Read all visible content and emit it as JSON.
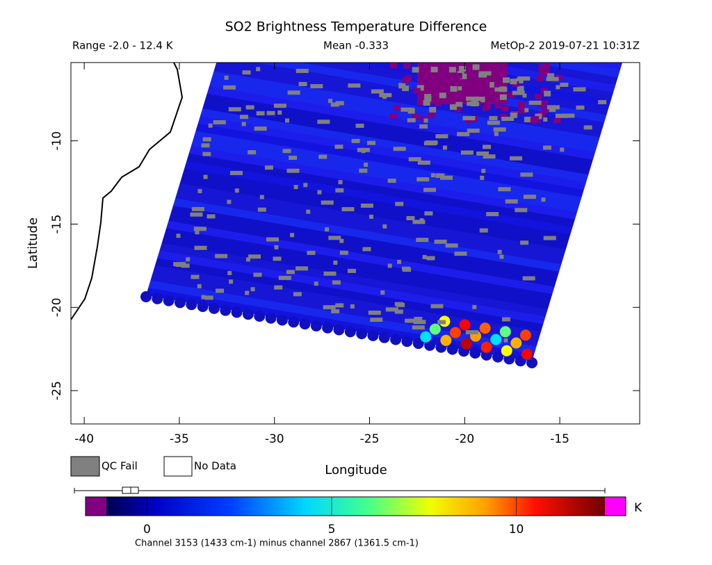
{
  "chart_data": {
    "type": "swath-map",
    "title": "SO2 Brightness Temperature Difference",
    "range_label": "Range -2.0 - 12.4 K",
    "mean_label": "Mean -0.333",
    "satellite_label": "MetOp-2 2019-07-21 10:31Z",
    "xlabel": "Longitude",
    "ylabel": "Latitude",
    "xlim": [
      -40.7,
      -10.8
    ],
    "ylim": [
      -27.0,
      -5.3
    ],
    "xticks": [
      -40,
      -35,
      -30,
      -25,
      -20,
      -15
    ],
    "yticks": [
      -10,
      -15,
      -20,
      -25
    ],
    "legend": [
      "QC Fail",
      "No Data"
    ],
    "colorbar_lim": [
      -1.1,
      12.4
    ],
    "colorbar_ticks": [
      0,
      5,
      10
    ],
    "colorbar_unit": "K",
    "colorbar_label": "Channel 3153 (1433 cm-1) minus channel 2867 (1361.5 cm-1)"
  }
}
